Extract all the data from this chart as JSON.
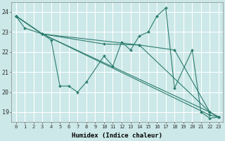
{
  "xlabel": "Humidex (Indice chaleur)",
  "xlim": [
    -0.5,
    23.5
  ],
  "ylim": [
    18.5,
    24.5
  ],
  "yticks": [
    19,
    20,
    21,
    22,
    23,
    24
  ],
  "xticks": [
    0,
    1,
    2,
    3,
    4,
    5,
    6,
    7,
    8,
    9,
    10,
    11,
    12,
    13,
    14,
    15,
    16,
    17,
    18,
    19,
    20,
    21,
    22,
    23
  ],
  "line_color": "#2d7d6f",
  "bg_color": "#cce8e8",
  "grid_color": "#ffffff",
  "series": [
    {
      "x": [
        0,
        1,
        3,
        4,
        5,
        6,
        7,
        8,
        10,
        11,
        12,
        13,
        14,
        15,
        16,
        17,
        18,
        20,
        21,
        22,
        23
      ],
      "y": [
        23.8,
        23.2,
        22.9,
        22.6,
        20.3,
        20.3,
        20.0,
        20.5,
        21.8,
        21.3,
        22.5,
        22.1,
        22.8,
        23.0,
        23.8,
        24.2,
        20.2,
        22.1,
        19.0,
        18.7,
        18.75
      ]
    },
    {
      "x": [
        0,
        3,
        10,
        14,
        18,
        22,
        23
      ],
      "y": [
        23.8,
        22.9,
        22.4,
        22.35,
        22.1,
        19.0,
        18.75
      ]
    },
    {
      "x": [
        0,
        3,
        22,
        23
      ],
      "y": [
        23.8,
        22.9,
        19.0,
        18.75
      ]
    },
    {
      "x": [
        0,
        3,
        22,
        23
      ],
      "y": [
        23.8,
        22.9,
        18.85,
        18.75
      ]
    },
    {
      "x": [
        0,
        3,
        14,
        22,
        23
      ],
      "y": [
        23.8,
        22.9,
        22.35,
        19.0,
        18.75
      ]
    }
  ]
}
